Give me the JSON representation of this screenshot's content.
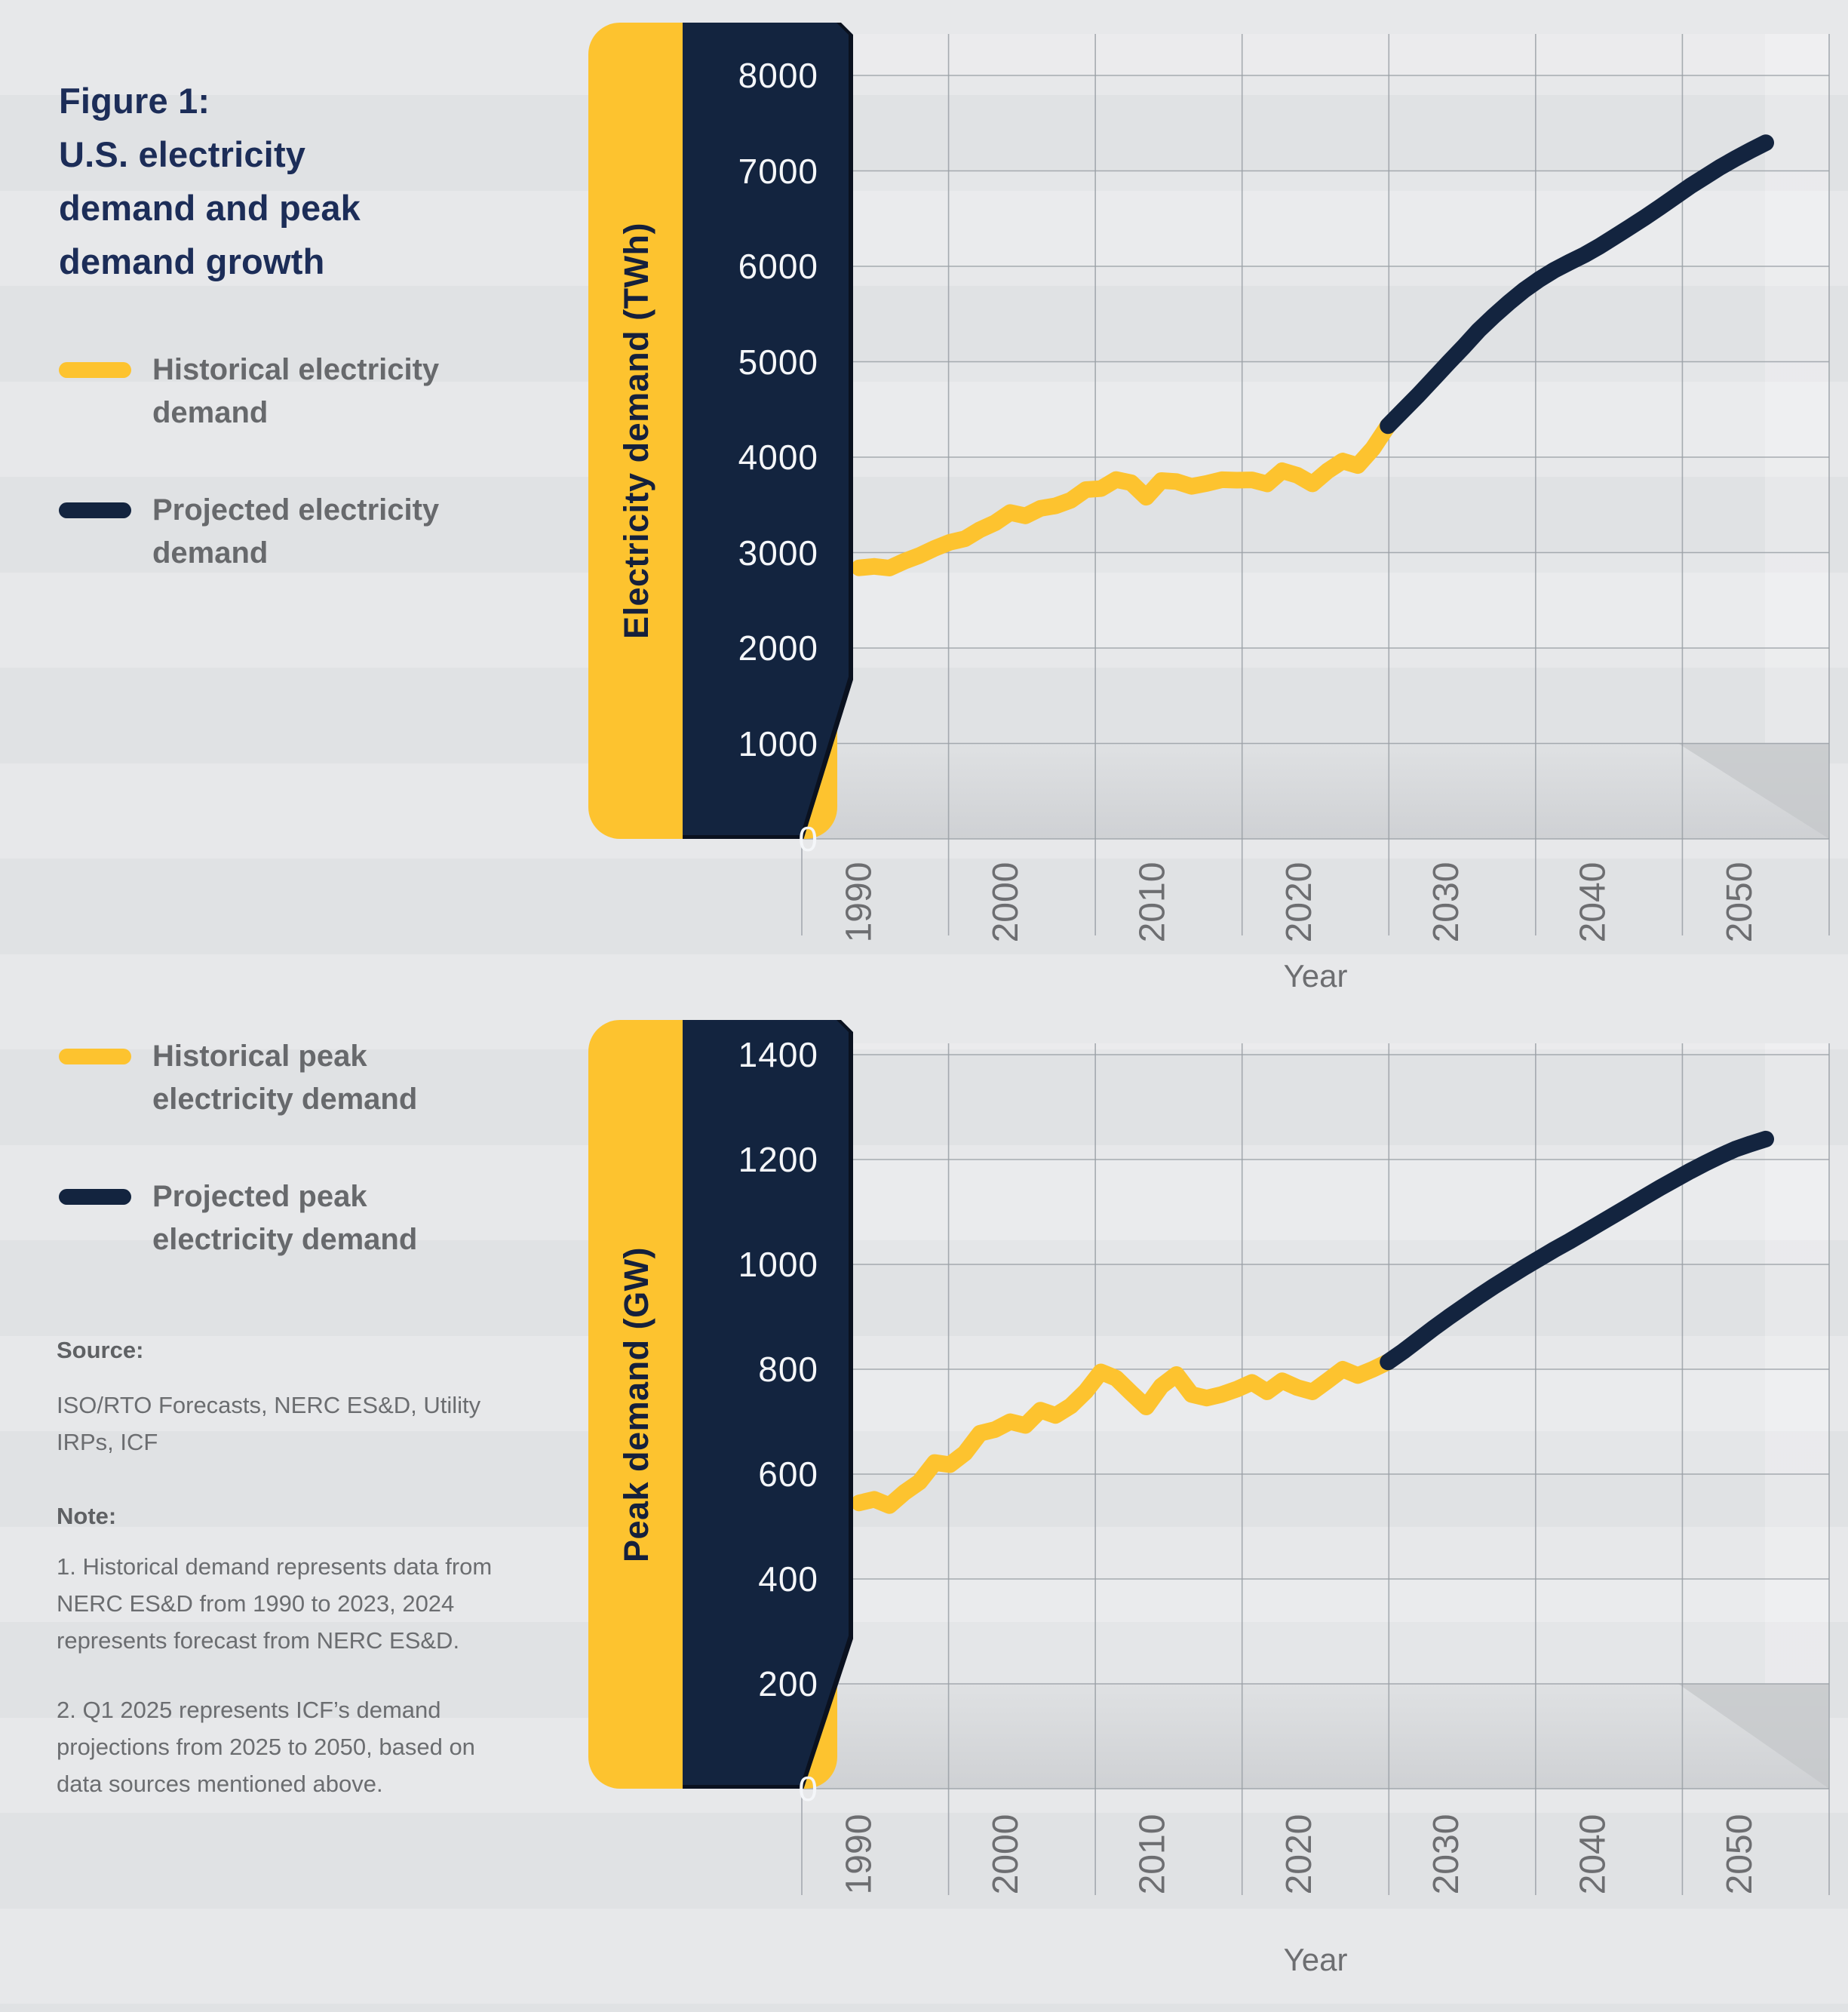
{
  "figure": {
    "title": "Figure 1:\nU.S. electricity\ndemand and peak\ndemand growth"
  },
  "legend_demand": {
    "items": [
      {
        "label": "Historical electricity demand",
        "color_key": "yellow"
      },
      {
        "label": "Projected electricity demand",
        "color_key": "navy"
      }
    ]
  },
  "legend_peak": {
    "items": [
      {
        "label": "Historical peak electricity demand",
        "color_key": "yellow"
      },
      {
        "label": "Projected peak electricity demand",
        "color_key": "navy"
      }
    ]
  },
  "source": {
    "label": "Source:",
    "body": "ISO/RTO Forecasts, NERC ES&D, Utility IRPs, ICF"
  },
  "note": {
    "label": "Note:",
    "items": [
      "1. Historical demand represents data from NERC ES&D from 1990 to 2023, 2024 represents forecast from NERC ES&D.",
      "2. Q1 2025 represents ICF’s demand projections from 2025 to 2050, based on data sources mentioned above."
    ]
  },
  "colors": {
    "yellow": "#FDC32F",
    "navy": "#13243F",
    "title_navy": "#1c2d58",
    "text_gray": "#6d6e71",
    "grid": "#9aa0a6",
    "panel_text": "#f4f6f9",
    "background": "#e4e5e7"
  },
  "chart_data": [
    {
      "type": "line",
      "ylabel": "Electricity demand (TWh)",
      "xlabel": "Year",
      "ylim": [
        0,
        8000
      ],
      "xlim": [
        1990,
        2050
      ],
      "y_ticks": [
        8000,
        7000,
        6000,
        5000,
        4000,
        3000,
        2000,
        1000,
        0
      ],
      "x_ticks": [
        1990,
        2000,
        2010,
        2020,
        2030,
        2040,
        2050
      ],
      "grid": true,
      "legend_position": "outside-left",
      "series": [
        {
          "name": "Historical electricity demand",
          "color_key": "yellow",
          "start_year": 1990,
          "values": [
            2840,
            2855,
            2838,
            2910,
            2970,
            3045,
            3108,
            3145,
            3240,
            3312,
            3420,
            3385,
            3463,
            3490,
            3548,
            3660,
            3670,
            3765,
            3732,
            3580,
            3755,
            3745,
            3694,
            3725,
            3764,
            3759,
            3762,
            3720,
            3858,
            3810,
            3720,
            3855,
            3960,
            3912,
            4090,
            4330
          ]
        },
        {
          "name": "Projected electricity demand",
          "color_key": "navy",
          "start_year": 2025,
          "values": [
            4330,
            4490,
            4650,
            4820,
            4990,
            5155,
            5330,
            5480,
            5620,
            5750,
            5862,
            5960,
            6042,
            6120,
            6210,
            6310,
            6410,
            6512,
            6620,
            6730,
            6840,
            6940,
            7040,
            7130,
            7215,
            7295
          ]
        }
      ]
    },
    {
      "type": "line",
      "ylabel": "Peak demand (GW)",
      "xlabel": "Year",
      "ylim": [
        0,
        1400
      ],
      "xlim": [
        1990,
        2050
      ],
      "y_ticks": [
        1400,
        1200,
        1000,
        800,
        600,
        400,
        200,
        0
      ],
      "x_ticks": [
        1990,
        2000,
        2010,
        2020,
        2030,
        2040,
        2050
      ],
      "grid": true,
      "legend_position": "outside-left",
      "series": [
        {
          "name": "Historical peak electricity demand",
          "color_key": "yellow",
          "start_year": 1990,
          "values": [
            545,
            552,
            540,
            565,
            585,
            622,
            618,
            640,
            678,
            685,
            700,
            693,
            722,
            712,
            730,
            758,
            795,
            783,
            755,
            728,
            768,
            790,
            752,
            745,
            752,
            762,
            775,
            757,
            778,
            765,
            757,
            778,
            800,
            788,
            800,
            814
          ]
        },
        {
          "name": "Projected peak electricity demand",
          "color_key": "navy",
          "start_year": 2025,
          "values": [
            814,
            834,
            856,
            878,
            899,
            919,
            939,
            958,
            976,
            994,
            1011,
            1028,
            1044,
            1061,
            1078,
            1095,
            1112,
            1129,
            1146,
            1162,
            1178,
            1193,
            1207,
            1220,
            1230,
            1239
          ]
        }
      ]
    }
  ]
}
